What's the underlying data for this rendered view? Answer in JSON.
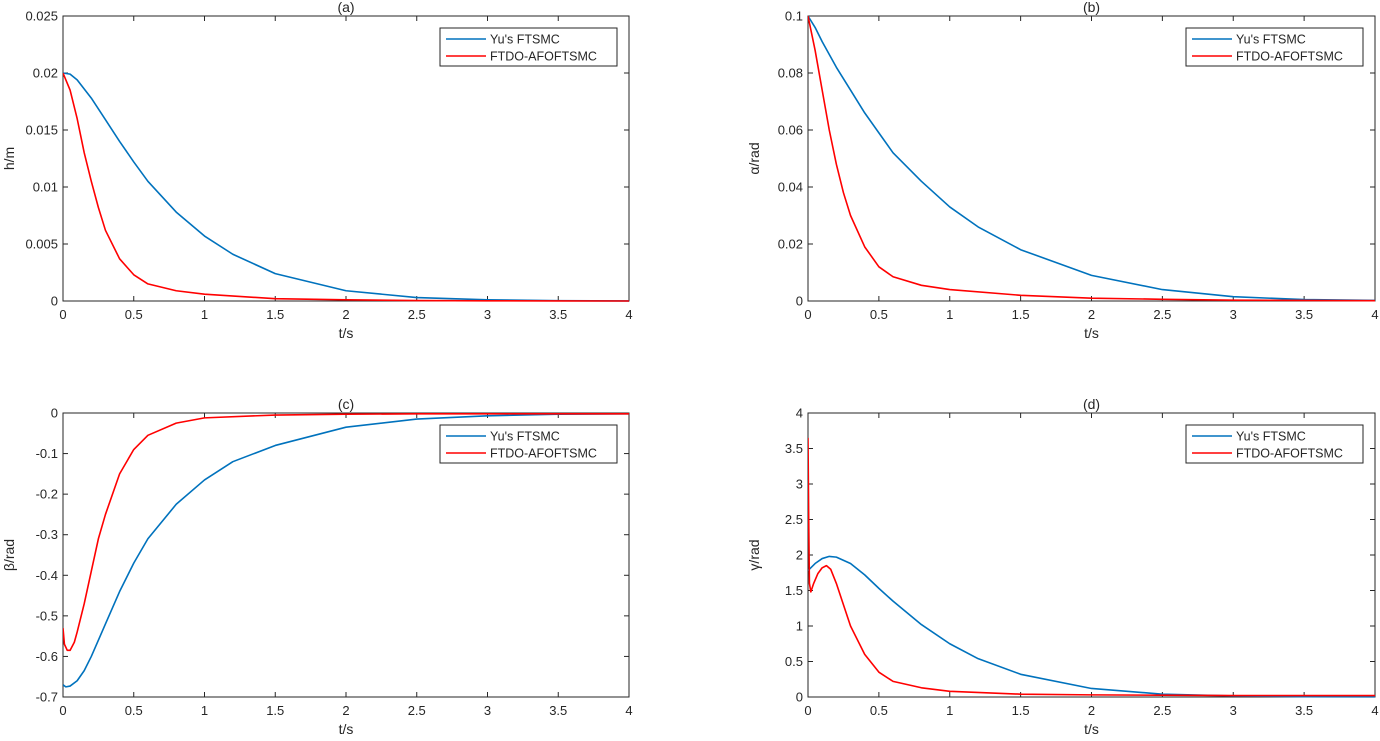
{
  "colors": {
    "yu": "#0072BD",
    "ftdo": "#FF0000",
    "axis": "#262626"
  },
  "chart_data": [
    {
      "type": "line",
      "title": "(a)",
      "xlabel": "t/s",
      "ylabel": "h/m",
      "xlim": [
        0,
        4
      ],
      "ylim": [
        0,
        0.025
      ],
      "xticks": [
        0,
        0.5,
        1,
        1.5,
        2,
        2.5,
        3,
        3.5,
        4
      ],
      "xtick_labels": [
        "0",
        "0.5",
        "1",
        "1.5",
        "2",
        "2.5",
        "3",
        "3.5",
        "4"
      ],
      "yticks": [
        0,
        0.005,
        0.01,
        0.015,
        0.02,
        0.025
      ],
      "ytick_labels": [
        "0",
        "0.005",
        "0.01",
        "0.015",
        "0.02",
        "0.025"
      ],
      "legend_position": "top-right",
      "series": [
        {
          "name": "Yu's  FTSMC",
          "color": "#0072BD",
          "x": [
            0,
            0.05,
            0.1,
            0.2,
            0.3,
            0.4,
            0.5,
            0.6,
            0.8,
            1.0,
            1.2,
            1.5,
            2.0,
            2.5,
            3.0,
            3.5,
            4.0
          ],
          "y": [
            0.02,
            0.0199,
            0.0194,
            0.0178,
            0.0159,
            0.014,
            0.0122,
            0.0105,
            0.0078,
            0.0057,
            0.0041,
            0.0024,
            0.0009,
            0.0003,
            0.0001,
            3e-05,
            1e-05
          ]
        },
        {
          "name": "FTDO-AFOFTSMC",
          "color": "#FF0000",
          "x": [
            0,
            0.05,
            0.1,
            0.15,
            0.2,
            0.25,
            0.3,
            0.4,
            0.5,
            0.6,
            0.8,
            1.0,
            1.5,
            2.0,
            2.5,
            3.0,
            3.5,
            4.0
          ],
          "y": [
            0.02,
            0.0185,
            0.016,
            0.013,
            0.0105,
            0.0082,
            0.0062,
            0.0037,
            0.0023,
            0.0015,
            0.0009,
            0.0006,
            0.0002,
            0.0001,
            4e-05,
            2e-05,
            1e-05,
            0.0
          ]
        }
      ]
    },
    {
      "type": "line",
      "title": "(b)",
      "xlabel": "t/s",
      "ylabel": "α/rad",
      "xlim": [
        0,
        4
      ],
      "ylim": [
        0,
        0.1
      ],
      "xticks": [
        0,
        0.5,
        1,
        1.5,
        2,
        2.5,
        3,
        3.5,
        4
      ],
      "xtick_labels": [
        "0",
        "0.5",
        "1",
        "1.5",
        "2",
        "2.5",
        "3",
        "3.5",
        "4"
      ],
      "yticks": [
        0,
        0.02,
        0.04,
        0.06,
        0.08,
        0.1
      ],
      "ytick_labels": [
        "0",
        "0.02",
        "0.04",
        "0.06",
        "0.08",
        "0.1"
      ],
      "legend_position": "top-right",
      "series": [
        {
          "name": "Yu's  FTSMC",
          "color": "#0072BD",
          "x": [
            0,
            0.05,
            0.1,
            0.2,
            0.3,
            0.4,
            0.5,
            0.6,
            0.8,
            1.0,
            1.2,
            1.5,
            2.0,
            2.5,
            3.0,
            3.5,
            4.0
          ],
          "y": [
            0.1,
            0.096,
            0.091,
            0.082,
            0.074,
            0.066,
            0.059,
            0.052,
            0.042,
            0.033,
            0.026,
            0.018,
            0.009,
            0.004,
            0.0015,
            0.0005,
            0.0002
          ]
        },
        {
          "name": "FTDO-AFOFTSMC",
          "color": "#FF0000",
          "x": [
            0,
            0.05,
            0.1,
            0.15,
            0.2,
            0.25,
            0.3,
            0.4,
            0.5,
            0.6,
            0.8,
            1.0,
            1.5,
            2.0,
            2.5,
            3.0,
            3.5,
            4.0
          ],
          "y": [
            0.1,
            0.088,
            0.074,
            0.06,
            0.048,
            0.038,
            0.03,
            0.019,
            0.012,
            0.0085,
            0.0055,
            0.004,
            0.002,
            0.001,
            0.0006,
            0.0003,
            0.0002,
            0.0001
          ]
        }
      ]
    },
    {
      "type": "line",
      "title": "(c)",
      "xlabel": "t/s",
      "ylabel": "β/rad",
      "xlim": [
        0,
        4
      ],
      "ylim": [
        -0.7,
        0
      ],
      "xticks": [
        0,
        0.5,
        1,
        1.5,
        2,
        2.5,
        3,
        3.5,
        4
      ],
      "xtick_labels": [
        "0",
        "0.5",
        "1",
        "1.5",
        "2",
        "2.5",
        "3",
        "3.5",
        "4"
      ],
      "yticks": [
        -0.7,
        -0.6,
        -0.5,
        -0.4,
        -0.3,
        -0.2,
        -0.1,
        0
      ],
      "ytick_labels": [
        "-0.7",
        "-0.6",
        "-0.5",
        "-0.4",
        "-0.3",
        "-0.2",
        "-0.1",
        "0"
      ],
      "legend_position": "top-right",
      "series": [
        {
          "name": "Yu's  FTSMC",
          "color": "#0072BD",
          "x": [
            0,
            0.02,
            0.05,
            0.1,
            0.15,
            0.2,
            0.3,
            0.4,
            0.5,
            0.6,
            0.8,
            1.0,
            1.2,
            1.5,
            2.0,
            2.5,
            3.0,
            3.5,
            4.0
          ],
          "y": [
            -0.67,
            -0.675,
            -0.673,
            -0.66,
            -0.635,
            -0.6,
            -0.52,
            -0.44,
            -0.37,
            -0.31,
            -0.225,
            -0.165,
            -0.12,
            -0.08,
            -0.035,
            -0.015,
            -0.007,
            -0.003,
            -0.002
          ]
        },
        {
          "name": "FTDO-AFOFTSMC",
          "color": "#FF0000",
          "x": [
            0,
            0.01,
            0.03,
            0.05,
            0.08,
            0.1,
            0.15,
            0.2,
            0.25,
            0.3,
            0.4,
            0.5,
            0.6,
            0.8,
            1.0,
            1.5,
            2.0,
            2.5,
            3.0,
            3.5,
            4.0
          ],
          "y": [
            -0.53,
            -0.57,
            -0.585,
            -0.585,
            -0.565,
            -0.54,
            -0.47,
            -0.39,
            -0.31,
            -0.25,
            -0.15,
            -0.09,
            -0.055,
            -0.025,
            -0.012,
            -0.005,
            -0.003,
            -0.002,
            -0.002,
            -0.002,
            -0.002
          ]
        }
      ]
    },
    {
      "type": "line",
      "title": "(d)",
      "xlabel": "t/s",
      "ylabel": "γ/rad",
      "xlim": [
        0,
        4
      ],
      "ylim": [
        0,
        4
      ],
      "xticks": [
        0,
        0.5,
        1,
        1.5,
        2,
        2.5,
        3,
        3.5,
        4
      ],
      "xtick_labels": [
        "0",
        "0.5",
        "1",
        "1.5",
        "2",
        "2.5",
        "3",
        "3.5",
        "4"
      ],
      "yticks": [
        0,
        0.5,
        1,
        1.5,
        2,
        2.5,
        3,
        3.5,
        4
      ],
      "ytick_labels": [
        "0",
        "0.5",
        "1",
        "1.5",
        "2",
        "2.5",
        "3",
        "3.5",
        "4"
      ],
      "legend_position": "top-right",
      "series": [
        {
          "name": "Yu's  FTSMC",
          "color": "#0072BD",
          "x": [
            0,
            0.05,
            0.1,
            0.15,
            0.2,
            0.3,
            0.4,
            0.5,
            0.6,
            0.8,
            1.0,
            1.2,
            1.5,
            2.0,
            2.5,
            3.0,
            3.5,
            4.0
          ],
          "y": [
            1.78,
            1.88,
            1.95,
            1.98,
            1.97,
            1.88,
            1.72,
            1.53,
            1.35,
            1.02,
            0.75,
            0.54,
            0.32,
            0.12,
            0.04,
            0.015,
            0.005,
            0.002
          ]
        },
        {
          "name": "FTDO-AFOFTSMC",
          "color": "#FF0000",
          "x": [
            0,
            0.005,
            0.01,
            0.02,
            0.04,
            0.07,
            0.1,
            0.13,
            0.16,
            0.2,
            0.25,
            0.3,
            0.4,
            0.5,
            0.6,
            0.8,
            1.0,
            1.5,
            2.0,
            2.5,
            3.0,
            3.5,
            4.0
          ],
          "y": [
            3.65,
            2.5,
            1.6,
            1.48,
            1.6,
            1.74,
            1.82,
            1.85,
            1.8,
            1.6,
            1.3,
            1.0,
            0.6,
            0.35,
            0.22,
            0.13,
            0.08,
            0.04,
            0.03,
            0.025,
            0.02,
            0.02,
            0.02
          ]
        }
      ]
    }
  ]
}
